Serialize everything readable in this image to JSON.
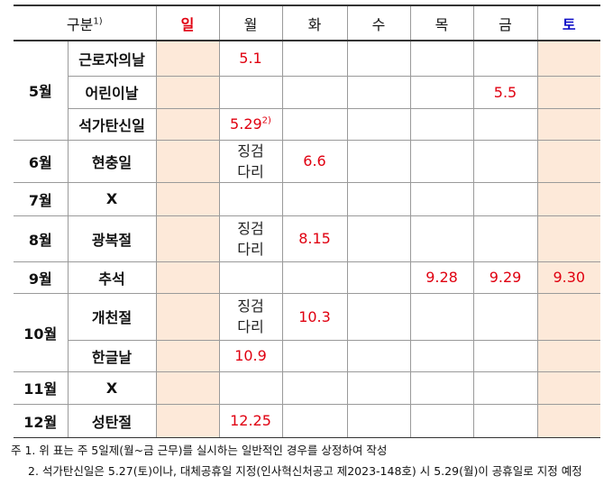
{
  "table": {
    "header": {
      "label": "구분",
      "label_note": "1)",
      "days": [
        "일",
        "월",
        "화",
        "수",
        "목",
        "금",
        "토"
      ]
    },
    "groups": [
      {
        "month": "5월",
        "items": [
          {
            "name": "근로자의날",
            "cells": [
              null,
              "5.1",
              null,
              null,
              null,
              null,
              null
            ]
          },
          {
            "name": "어린이날",
            "cells": [
              null,
              null,
              null,
              null,
              null,
              "5.5",
              null
            ]
          },
          {
            "name": "석가탄신일",
            "cells": [
              null,
              {
                "text": "5.29",
                "note": "2)"
              },
              null,
              null,
              null,
              null,
              null
            ]
          }
        ]
      },
      {
        "month": "6월",
        "items": [
          {
            "name": "현충일",
            "cells": [
              null,
              "징검다리",
              "6.6",
              null,
              null,
              null,
              null
            ]
          }
        ]
      },
      {
        "month": "7월",
        "items": [
          {
            "name": "X",
            "cells": [
              null,
              null,
              null,
              null,
              null,
              null,
              null
            ]
          }
        ]
      },
      {
        "month": "8월",
        "items": [
          {
            "name": "광복절",
            "cells": [
              null,
              "징검다리",
              "8.15",
              null,
              null,
              null,
              null
            ]
          }
        ]
      },
      {
        "month": "9월",
        "items": [
          {
            "name": "추석",
            "cells": [
              null,
              null,
              null,
              null,
              "9.28",
              "9.29",
              "9.30"
            ]
          }
        ]
      },
      {
        "month": "10월",
        "items": [
          {
            "name": "개천절",
            "cells": [
              null,
              "징검다리",
              "10.3",
              null,
              null,
              null,
              null
            ]
          },
          {
            "name": "한글날",
            "cells": [
              null,
              "10.9",
              null,
              null,
              null,
              null,
              null
            ]
          }
        ]
      },
      {
        "month": "11월",
        "items": [
          {
            "name": "X",
            "cells": [
              null,
              null,
              null,
              null,
              null,
              null,
              null
            ]
          }
        ]
      },
      {
        "month": "12월",
        "items": [
          {
            "name": "성탄절",
            "cells": [
              null,
              "12.25",
              null,
              null,
              null,
              null,
              null
            ]
          }
        ]
      }
    ],
    "notes": [
      "주 1. 위 표는 주 5일제(월~금 근무)를 실시하는 일반적인 경우를 상정하여 작성",
      "2. 석가탄신일은 5.27(토)이나, 대체공휴일 지정(인사혁신처공고 제2023-148호) 시 5.29(월)이 공휴일로 지정 예정"
    ]
  }
}
